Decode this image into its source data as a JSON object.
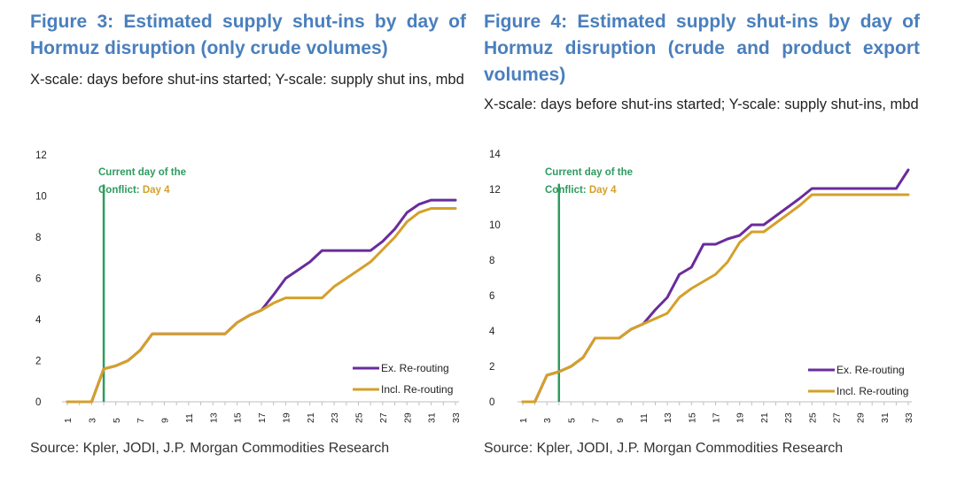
{
  "figures": [
    {
      "title": "Figure 3: Estimated supply shut-ins by day of Hormuz disruption (only crude volumes)",
      "subtitle": "X-scale: days before shut-ins started; Y-scale: supply shut ins, mbd",
      "source": "Source: Kpler, JODI, J.P. Morgan Commodities Research"
    },
    {
      "title": "Figure 4: Estimated supply shut-ins by day of Hormuz disruption (crude and product export volumes)",
      "subtitle": "X-scale: days before shut-ins started; Y-scale: supply shut-ins, mbd",
      "source": "Source: Kpler, JODI, J.P. Morgan Commodities Research"
    }
  ],
  "chart_data": [
    {
      "type": "line",
      "title": "Figure 3: Estimated supply shut-ins by day of Hormuz disruption (only crude volumes)",
      "xlabel": "days before shut-ins started",
      "ylabel": "supply shut ins, mbd",
      "ylim": [
        0,
        12
      ],
      "yticks": [
        0,
        2,
        4,
        6,
        8,
        10,
        12
      ],
      "x": [
        1,
        2,
        3,
        4,
        5,
        6,
        7,
        8,
        9,
        10,
        11,
        12,
        13,
        14,
        15,
        16,
        17,
        18,
        19,
        20,
        21,
        22,
        23,
        24,
        25,
        26,
        27,
        28,
        29,
        30,
        31,
        32,
        33
      ],
      "xticks": [
        1,
        3,
        5,
        7,
        9,
        11,
        13,
        15,
        17,
        19,
        21,
        23,
        25,
        27,
        29,
        31,
        33
      ],
      "legend_position": "bottom-right",
      "current_day": 4,
      "annotation": {
        "line1": "Current day of the",
        "line2": "Conflict:",
        "day_text": "Day 4"
      },
      "colors": {
        "ex": "#6a2c9c",
        "incl": "#d4a029",
        "marker": "#2e9b5f"
      },
      "series": [
        {
          "name": "Ex. Re-routing",
          "values": [
            0,
            0,
            0,
            1.6,
            1.75,
            2,
            2.5,
            3.3,
            3.3,
            3.3,
            3.3,
            3.3,
            3.3,
            3.3,
            3.85,
            4.2,
            4.45,
            5.2,
            6,
            6.4,
            6.8,
            7.35,
            7.35,
            7.35,
            7.35,
            7.35,
            7.8,
            8.4,
            9.2,
            9.6,
            9.8,
            9.8,
            9.8
          ]
        },
        {
          "name": "Incl. Re-routing",
          "values": [
            0,
            0,
            0,
            1.6,
            1.75,
            2,
            2.5,
            3.3,
            3.3,
            3.3,
            3.3,
            3.3,
            3.3,
            3.3,
            3.85,
            4.2,
            4.45,
            4.8,
            5.05,
            5.05,
            5.05,
            5.05,
            5.6,
            6,
            6.4,
            6.8,
            7.4,
            8,
            8.75,
            9.2,
            9.4,
            9.4,
            9.4
          ]
        }
      ]
    },
    {
      "type": "line",
      "title": "Figure 4: Estimated supply shut-ins by day of Hormuz disruption (crude and product export volumes)",
      "xlabel": "days before shut-ins started",
      "ylabel": "supply shut-ins, mbd",
      "ylim": [
        0,
        14
      ],
      "yticks": [
        0,
        2,
        4,
        6,
        8,
        10,
        12,
        14
      ],
      "x": [
        1,
        2,
        3,
        4,
        5,
        6,
        7,
        8,
        9,
        10,
        11,
        12,
        13,
        14,
        15,
        16,
        17,
        18,
        19,
        20,
        21,
        22,
        23,
        24,
        25,
        26,
        27,
        28,
        29,
        30,
        31,
        32,
        33
      ],
      "xticks": [
        1,
        3,
        5,
        7,
        9,
        11,
        13,
        15,
        17,
        19,
        21,
        23,
        25,
        27,
        29,
        31,
        33
      ],
      "legend_position": "bottom-right",
      "current_day": 4,
      "annotation": {
        "line1": "Current day of the",
        "line2": "Conflict:",
        "day_text": "Day 4"
      },
      "colors": {
        "ex": "#6a2c9c",
        "incl": "#d4a029",
        "marker": "#2e9b5f"
      },
      "series": [
        {
          "name": "Ex. Re-routing",
          "values": [
            0,
            0,
            1.5,
            1.7,
            2,
            2.5,
            3.6,
            3.6,
            3.6,
            4.1,
            4.4,
            5.2,
            5.9,
            7.2,
            7.6,
            8.9,
            8.9,
            9.2,
            9.4,
            10,
            10,
            10.5,
            11,
            11.5,
            12.05,
            12.05,
            12.05,
            12.05,
            12.05,
            12.05,
            12.05,
            12.05,
            13.1
          ]
        },
        {
          "name": "Incl. Re-routing",
          "values": [
            0,
            0,
            1.5,
            1.7,
            2,
            2.5,
            3.6,
            3.6,
            3.6,
            4.1,
            4.4,
            4.7,
            5,
            5.9,
            6.4,
            6.8,
            7.2,
            7.9,
            9,
            9.6,
            9.6,
            10.1,
            10.6,
            11.1,
            11.7,
            11.7,
            11.7,
            11.7,
            11.7,
            11.7,
            11.7,
            11.7,
            11.7
          ]
        }
      ]
    }
  ]
}
